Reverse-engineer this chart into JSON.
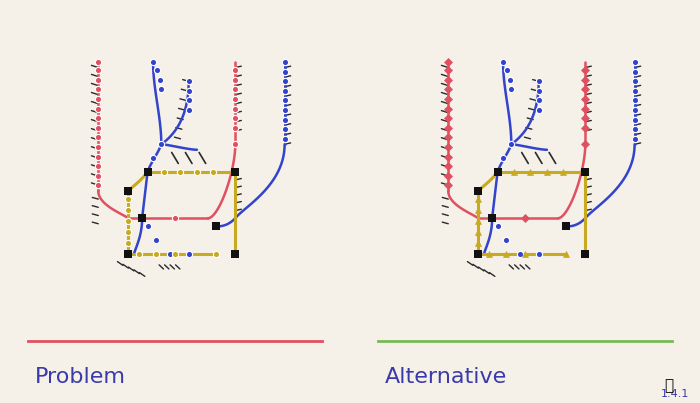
{
  "background_color": "#f5f0e8",
  "title_color": "#3a3aaa",
  "problem_label": "Problem",
  "alternative_label": "Alternative",
  "version_label": "1.4.1",
  "line_red": "#e05060",
  "line_blue": "#3344cc",
  "line_yellow": "#c8aa20",
  "line_green": "#77bb55",
  "stop_black": "#111111",
  "separator_red": "#e05060",
  "separator_green": "#77bb55",
  "label_fontsize": 16,
  "version_fontsize": 8
}
